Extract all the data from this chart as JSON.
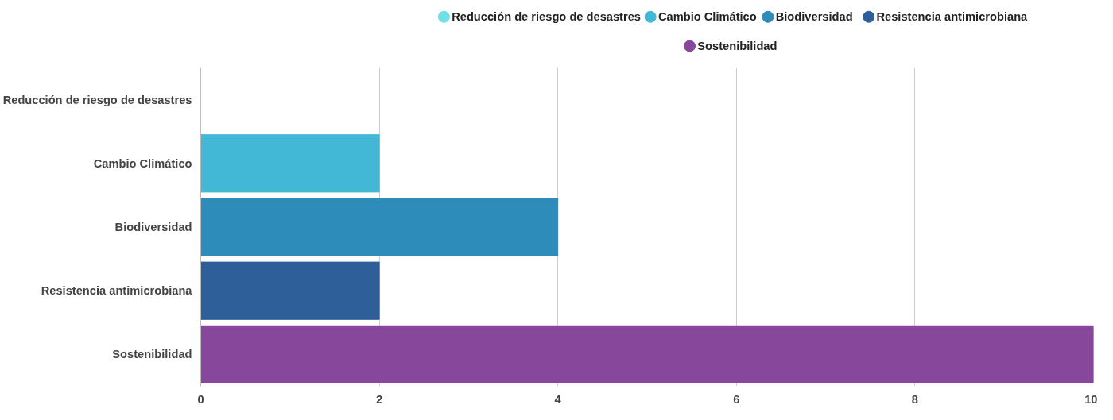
{
  "chart_data": {
    "type": "bar",
    "orientation": "horizontal",
    "categories": [
      "Reducción de riesgo de desastres",
      "Cambio Climático",
      "Biodiversidad",
      "Resistencia antimicrobiana",
      "Sostenibilidad"
    ],
    "series": [
      {
        "name": "Reducción de riesgo de desastres",
        "color": "#6ee0e8",
        "values": [
          0,
          null,
          null,
          null,
          null
        ]
      },
      {
        "name": "Cambio Climático",
        "color": "#42b8d6",
        "values": [
          null,
          2,
          null,
          null,
          null
        ]
      },
      {
        "name": "Biodiversidad",
        "color": "#2e8cba",
        "values": [
          null,
          null,
          4,
          null,
          null
        ]
      },
      {
        "name": "Resistencia antimicrobiana",
        "color": "#2e5f99",
        "values": [
          null,
          null,
          null,
          2,
          null
        ]
      },
      {
        "name": "Sostenibilidad",
        "color": "#87489c",
        "values": [
          null,
          null,
          null,
          null,
          10
        ]
      }
    ],
    "xlim": [
      0,
      10
    ],
    "xticks": [
      0,
      2,
      4,
      6,
      8,
      10
    ],
    "grid": "x",
    "legend": "top"
  }
}
